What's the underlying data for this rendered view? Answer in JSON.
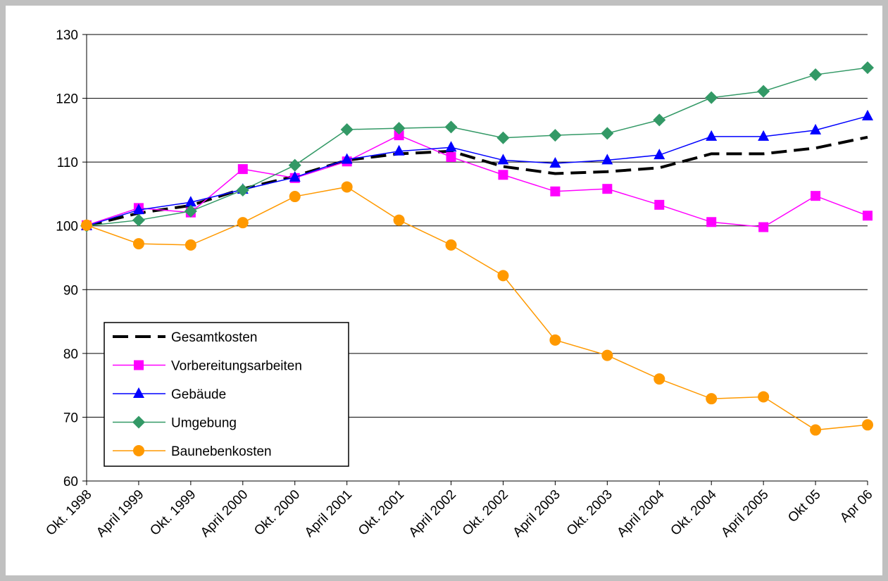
{
  "chart_data": {
    "type": "line",
    "categories": [
      "Okt. 1998",
      "April 1999",
      "Okt. 1999",
      "April 2000",
      "Okt. 2000",
      "April 2001",
      "Okt. 2001",
      "April 2002",
      "Okt. 2002",
      "April 2003",
      "Okt. 2003",
      "April 2004",
      "Okt. 2004",
      "April 2005",
      "Okt 05",
      "Apr 06"
    ],
    "ylim": [
      60,
      130
    ],
    "yticks": [
      60,
      70,
      80,
      90,
      100,
      110,
      120,
      130
    ],
    "grid": true,
    "legend": "lower-left",
    "series": [
      {
        "name": "Gesamtkosten",
        "color": "#000000",
        "marker": "none",
        "dash": true,
        "values": [
          100,
          102,
          103.2,
          105.8,
          107.8,
          110.3,
          111.3,
          111.7,
          109.3,
          108.2,
          108.5,
          109.1,
          111.3,
          111.3,
          112.2,
          113.9
        ]
      },
      {
        "name": "Vorbereitungsarbeiten",
        "color": "#ff00ff",
        "marker": "square",
        "dash": false,
        "values": [
          100.1,
          102.8,
          102.1,
          108.9,
          107.5,
          110.1,
          114.2,
          110.8,
          108.0,
          105.4,
          105.8,
          103.3,
          100.6,
          99.8,
          104.7,
          101.6
        ]
      },
      {
        "name": "Gebäude",
        "color": "#0000ff",
        "marker": "triangle",
        "dash": false,
        "values": [
          100,
          102.5,
          103.7,
          105.7,
          107.6,
          110.4,
          111.7,
          112.3,
          110.3,
          109.8,
          110.3,
          111.1,
          114.0,
          114.0,
          115.0,
          117.2
        ]
      },
      {
        "name": "Umgebung",
        "color": "#339966",
        "marker": "diamond",
        "dash": false,
        "values": [
          100,
          100.9,
          102.3,
          105.6,
          109.5,
          115.1,
          115.3,
          115.5,
          113.8,
          114.2,
          114.5,
          116.6,
          120.1,
          121.1,
          123.7,
          124.8
        ]
      },
      {
        "name": "Baunebenkosten",
        "color": "#ff9900",
        "marker": "circle",
        "dash": false,
        "values": [
          100.1,
          97.2,
          97.0,
          100.5,
          104.6,
          106.1,
          100.9,
          97.0,
          92.2,
          82.1,
          79.7,
          76.0,
          72.9,
          73.2,
          68.0,
          68.8
        ]
      }
    ]
  }
}
